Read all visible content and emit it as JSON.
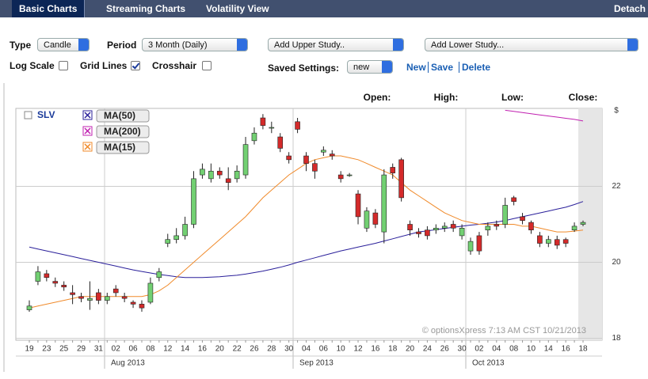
{
  "tabs": [
    "Basic Charts",
    "Streaming Charts",
    "Volatility View"
  ],
  "detach": "Detach",
  "controls": {
    "type_label": "Type",
    "type_value": "Candle",
    "period_label": "Period",
    "period_value": "3 Month (Daily)",
    "upper_study": "Add Upper Study..",
    "lower_study": "Add Lower Study...",
    "log_scale_label": "Log Scale",
    "grid_lines_label": "Grid Lines",
    "crosshair_label": "Crosshair",
    "crosshair": false,
    "saved_settings_label": "Saved Settings:",
    "saved_settings_value": "new",
    "links": [
      "New",
      "Save",
      "Delete"
    ]
  },
  "quote_header": [
    "Open:",
    "High:",
    "Low:",
    "Close:"
  ],
  "chart_data": {
    "type": "candlestick",
    "symbol": "SLV",
    "categories": [
      "19",
      null,
      "23",
      null,
      "25",
      null,
      "29",
      null,
      "31",
      null,
      "02",
      null,
      "06",
      null,
      "08",
      null,
      "12",
      null,
      "14",
      null,
      "16",
      null,
      "20",
      null,
      "22",
      null,
      "26",
      null,
      "28",
      null,
      "30",
      null,
      "04",
      null,
      "06",
      null,
      "10",
      null,
      "12",
      null,
      "16",
      null,
      "18",
      null,
      "20",
      null,
      "24",
      null,
      "26",
      null,
      "30",
      null,
      "02",
      null,
      "04",
      null,
      "08",
      null,
      "10",
      null,
      "14",
      null,
      "16",
      null,
      "18"
    ],
    "open": [
      18.75,
      19.5,
      19.7,
      19.5,
      19.4,
      19.2,
      19.1,
      19.0,
      19.2,
      19.0,
      19.3,
      19.1,
      18.95,
      18.9,
      18.95,
      19.6,
      20.5,
      20.6,
      20.7,
      21.0,
      22.3,
      22.2,
      22.4,
      22.2,
      22.2,
      22.3,
      23.2,
      23.8,
      23.55,
      23.3,
      22.8,
      23.7,
      22.8,
      22.6,
      22.9,
      22.85,
      22.3,
      22.3,
      21.8,
      20.9,
      21.3,
      20.8,
      22.5,
      22.7,
      21.0,
      20.8,
      20.85,
      20.85,
      20.9,
      21.0,
      20.7,
      20.3,
      20.7,
      20.85,
      21.0,
      21.0,
      21.7,
      21.2,
      21.05,
      20.7,
      20.5,
      20.6,
      20.6,
      20.85,
      21.0
    ],
    "high": [
      19.0,
      19.9,
      19.8,
      19.6,
      19.5,
      19.4,
      19.2,
      19.5,
      19.3,
      19.2,
      19.4,
      19.2,
      19.0,
      19.0,
      19.6,
      19.85,
      20.75,
      20.9,
      21.2,
      22.4,
      22.6,
      22.6,
      22.5,
      22.5,
      22.55,
      23.3,
      23.55,
      23.9,
      23.7,
      23.4,
      22.9,
      23.8,
      22.9,
      22.7,
      23.05,
      22.95,
      22.4,
      22.35,
      21.9,
      21.45,
      21.4,
      22.45,
      22.6,
      22.75,
      21.1,
      20.9,
      20.95,
      21.0,
      21.05,
      21.1,
      21.0,
      20.65,
      20.8,
      21.05,
      21.1,
      21.7,
      21.75,
      21.3,
      21.1,
      20.8,
      20.7,
      20.7,
      20.65,
      21.05,
      21.1
    ],
    "low": [
      18.7,
      19.4,
      19.5,
      19.35,
      19.25,
      18.9,
      18.95,
      18.75,
      18.9,
      18.9,
      19.1,
      18.95,
      18.8,
      18.7,
      18.9,
      19.5,
      20.4,
      20.5,
      20.6,
      20.9,
      22.2,
      22.1,
      22.2,
      21.9,
      22.1,
      22.2,
      23.1,
      23.5,
      23.4,
      22.9,
      22.6,
      23.4,
      22.4,
      22.2,
      22.8,
      22.7,
      22.1,
      22.25,
      21.0,
      20.8,
      20.9,
      20.5,
      22.2,
      21.6,
      20.7,
      20.65,
      20.6,
      20.75,
      20.8,
      20.8,
      20.6,
      20.2,
      20.2,
      20.7,
      20.85,
      20.9,
      21.5,
      21.0,
      20.75,
      20.4,
      20.4,
      20.35,
      20.4,
      20.8,
      20.95
    ],
    "close": [
      18.85,
      19.75,
      19.6,
      19.45,
      19.35,
      19.15,
      19.05,
      19.05,
      19.0,
      19.1,
      19.2,
      19.05,
      18.9,
      18.8,
      19.45,
      19.75,
      20.6,
      20.7,
      21.0,
      22.2,
      22.45,
      22.4,
      22.3,
      22.1,
      22.4,
      23.1,
      23.4,
      23.6,
      23.55,
      23.0,
      22.7,
      23.5,
      22.6,
      22.4,
      22.95,
      22.8,
      22.2,
      22.3,
      21.2,
      21.35,
      21.0,
      22.3,
      22.35,
      21.7,
      20.85,
      20.75,
      20.7,
      20.9,
      20.95,
      20.9,
      20.9,
      20.55,
      20.3,
      20.95,
      20.95,
      21.5,
      21.6,
      21.1,
      20.85,
      20.5,
      20.6,
      20.45,
      20.5,
      20.95,
      21.05
    ],
    "up_color": "#72d072",
    "down_color": "#d42a2a",
    "series": [
      {
        "name": "MA(50)",
        "color": "#2a1f9a",
        "values": [
          20.4,
          20.35,
          20.3,
          20.25,
          20.2,
          20.15,
          20.1,
          20.05,
          20.0,
          19.95,
          19.9,
          19.85,
          19.8,
          19.76,
          19.72,
          19.68,
          19.65,
          19.62,
          19.6,
          19.6,
          19.6,
          19.61,
          19.62,
          19.64,
          19.66,
          19.69,
          19.73,
          19.77,
          19.82,
          19.87,
          19.93,
          20.0,
          20.06,
          20.12,
          20.18,
          20.24,
          20.3,
          20.35,
          20.4,
          20.45,
          20.5,
          20.56,
          20.62,
          20.68,
          20.74,
          20.8,
          20.83,
          20.86,
          20.89,
          20.92,
          20.95,
          20.98,
          21.0,
          21.03,
          21.06,
          21.1,
          21.15,
          21.2,
          21.25,
          21.3,
          21.35,
          21.4,
          21.45,
          21.52,
          21.6
        ]
      },
      {
        "name": "MA(200)",
        "color": "#c020b0",
        "values": [
          null,
          null,
          null,
          null,
          null,
          null,
          null,
          null,
          null,
          null,
          null,
          null,
          null,
          null,
          null,
          null,
          null,
          null,
          null,
          null,
          null,
          null,
          null,
          null,
          null,
          null,
          null,
          null,
          null,
          null,
          null,
          null,
          null,
          null,
          null,
          null,
          null,
          null,
          null,
          null,
          null,
          null,
          null,
          null,
          null,
          null,
          null,
          null,
          null,
          null,
          null,
          null,
          null,
          null,
          null,
          24.0,
          23.97,
          23.94,
          23.91,
          23.88,
          23.85,
          23.82,
          23.79,
          23.76,
          23.72
        ]
      },
      {
        "name": "MA(15)",
        "color": "#f08a2a",
        "values": [
          18.8,
          18.85,
          18.9,
          18.95,
          19.0,
          19.05,
          19.1,
          19.1,
          19.1,
          19.1,
          19.1,
          19.1,
          19.1,
          19.1,
          19.15,
          19.25,
          19.4,
          19.6,
          19.8,
          20.0,
          20.2,
          20.4,
          20.6,
          20.8,
          21.0,
          21.2,
          21.45,
          21.7,
          21.9,
          22.1,
          22.3,
          22.45,
          22.6,
          22.7,
          22.75,
          22.8,
          22.8,
          22.75,
          22.7,
          22.6,
          22.5,
          22.4,
          22.3,
          22.1,
          21.9,
          21.75,
          21.6,
          21.45,
          21.3,
          21.2,
          21.1,
          21.05,
          21.0,
          21.0,
          21.0,
          21.0,
          21.0,
          20.95,
          20.95,
          20.9,
          20.85,
          20.8,
          20.8,
          20.82,
          20.85
        ]
      }
    ],
    "ylim": [
      17.95,
      24.05
    ],
    "yticks": [
      18,
      20,
      22
    ],
    "y_unit": "$",
    "grid": true,
    "log_scale": false,
    "month_labels": [
      "Aug 2013",
      "Sep 2013",
      "Oct 2013"
    ],
    "watermark": "© optionsXpress 7:13 AM CST 10/21/2013"
  }
}
